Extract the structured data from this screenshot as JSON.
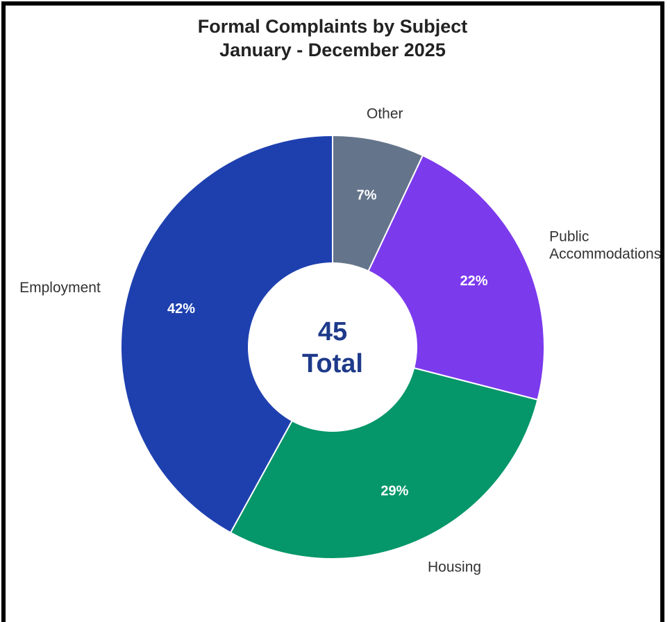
{
  "chart_data": {
    "type": "pie",
    "title": "Formal Complaints by Subject",
    "subtitle": "January - December 2025",
    "center": {
      "value": "45",
      "label": "Total",
      "color": "#1e3a8a"
    },
    "slices": [
      {
        "label": "Other",
        "value": 7,
        "display": "7%",
        "color": "#64748b"
      },
      {
        "label": "Public Accommodations",
        "label_lines": [
          "Public",
          "Accommodations"
        ],
        "value": 22,
        "display": "22%",
        "color": "#7c3aed"
      },
      {
        "label": "Housing",
        "value": 29,
        "display": "29%",
        "color": "#059669"
      },
      {
        "label": "Employment",
        "value": 42,
        "display": "42%",
        "color": "#1e40af"
      }
    ],
    "start_angle_deg": 0,
    "direction": "clockwise"
  }
}
